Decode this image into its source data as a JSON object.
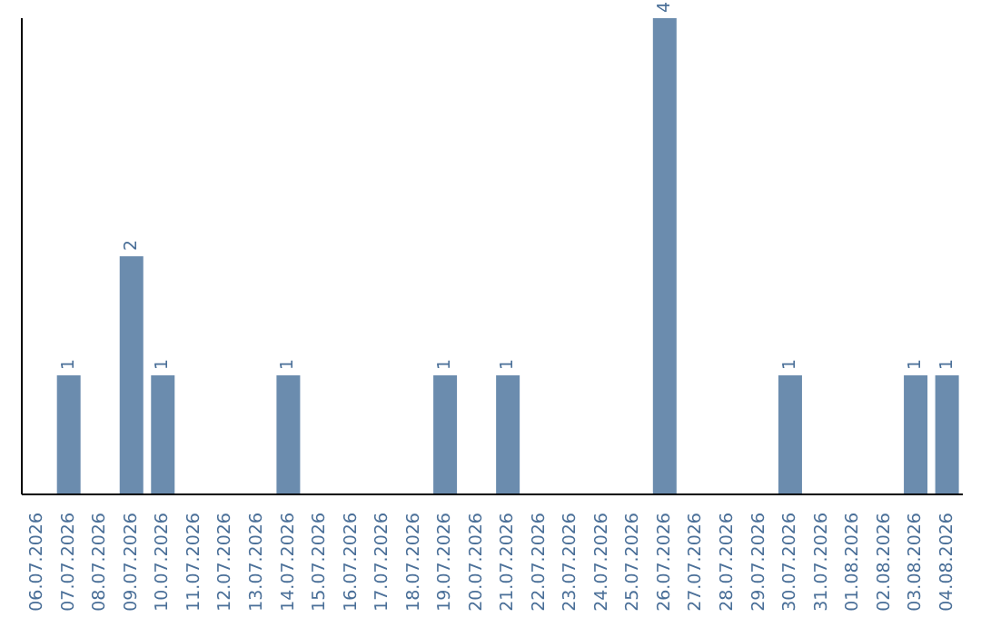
{
  "chart_data": {
    "type": "bar",
    "categories": [
      "06.07.2026",
      "07.07.2026",
      "08.07.2026",
      "09.07.2026",
      "10.07.2026",
      "11.07.2026",
      "12.07.2026",
      "13.07.2026",
      "14.07.2026",
      "15.07.2026",
      "16.07.2026",
      "17.07.2026",
      "18.07.2026",
      "19.07.2026",
      "20.07.2026",
      "21.07.2026",
      "22.07.2026",
      "23.07.2026",
      "24.07.2026",
      "25.07.2026",
      "26.07.2026",
      "27.07.2026",
      "28.07.2026",
      "29.07.2026",
      "30.07.2026",
      "31.07.2026",
      "01.08.2026",
      "02.08.2026",
      "03.08.2026",
      "04.08.2026"
    ],
    "values": [
      0,
      1,
      0,
      2,
      1,
      0,
      0,
      0,
      1,
      0,
      0,
      0,
      0,
      1,
      0,
      1,
      0,
      0,
      0,
      0,
      4,
      0,
      0,
      0,
      1,
      0,
      0,
      0,
      1,
      1
    ],
    "value_labels": [
      null,
      "1",
      null,
      "2",
      "1",
      null,
      null,
      null,
      "1",
      null,
      null,
      null,
      null,
      "1",
      null,
      "1",
      null,
      null,
      null,
      null,
      "4",
      null,
      null,
      null,
      "1",
      null,
      null,
      null,
      "1",
      "1"
    ],
    "color": "#6b8cae",
    "tick_labels": "x",
    "grid": false,
    "legend": false
  }
}
